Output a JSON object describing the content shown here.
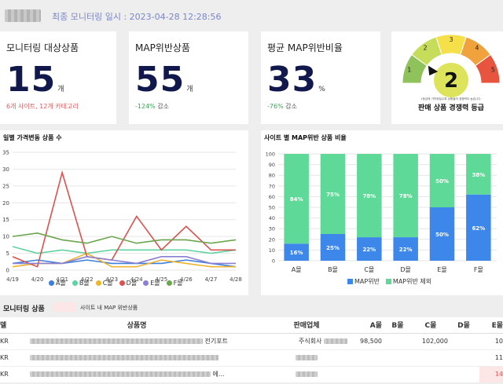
{
  "header": {
    "monitor_time": "최종 모니터링 일시 : 2023-04-28 12:28:56"
  },
  "kpi": [
    {
      "title": "모니터링 대상상품",
      "value": "15",
      "unit": "개",
      "sub_a": "6개 사이트, 12개 카테고리",
      "sub_b": ""
    },
    {
      "title": "MAP위반상품",
      "value": "55",
      "unit": "개",
      "sub_a": "-124%",
      "sub_b": "감소"
    },
    {
      "title": "평균 MAP위반비율",
      "value": "33",
      "unit": "%",
      "sub_a": "-76%",
      "sub_b": "감소"
    }
  ],
  "gauge": {
    "segments": [
      "1",
      "2",
      "3",
      "4",
      "5"
    ],
    "value": "2",
    "note": "1등급에 가까워질수록 상품들의 경쟁력이 높습니다.",
    "label": "판매 상품 경쟁력 등급",
    "colors": [
      "#8fc25a",
      "#c5dd5a",
      "#f6e04a",
      "#f0a33c",
      "#e8553e"
    ]
  },
  "line_panel": {
    "title": "일별 가격변동 상품 수"
  },
  "bar_panel": {
    "title": "사이트 별 MAP위반 상품 비율"
  },
  "chart_data": [
    {
      "type": "line",
      "title": "일별 가격변동 상품 수",
      "x": [
        "4/19",
        "4/20",
        "4/21",
        "4/22",
        "4/23",
        "4/24",
        "4/25",
        "4/26",
        "4/27",
        "4/28"
      ],
      "ylim": [
        0,
        35
      ],
      "yticks": [
        0,
        5,
        10,
        15,
        20,
        25,
        30,
        35
      ],
      "grid": true,
      "legend": "bottom",
      "series": [
        {
          "name": "A몰",
          "color": "#3d7fd9",
          "values": [
            2,
            3,
            2,
            3,
            2,
            2,
            2,
            3,
            2,
            1
          ]
        },
        {
          "name": "B몰",
          "color": "#5fd4a0",
          "values": [
            7,
            5,
            6,
            5,
            6,
            6,
            6,
            6,
            5,
            6
          ]
        },
        {
          "name": "C몰",
          "color": "#f0b32c",
          "values": [
            1,
            2,
            2,
            5,
            1,
            1,
            3,
            2,
            1,
            1
          ]
        },
        {
          "name": "D몰",
          "color": "#d9534f",
          "values": [
            4,
            1,
            29,
            4,
            3,
            16,
            6,
            13,
            6,
            6
          ]
        },
        {
          "name": "E몰",
          "color": "#8a7fd0",
          "values": [
            2,
            2,
            2,
            4,
            3,
            2,
            4,
            4,
            2,
            2
          ]
        },
        {
          "name": "F몰",
          "color": "#6ba54e",
          "values": [
            10,
            11,
            9,
            8,
            10,
            8,
            9,
            9,
            8,
            9
          ]
        }
      ]
    },
    {
      "type": "bar",
      "stacked": true,
      "title": "사이트 별 MAP위반 상품 비율",
      "categories": [
        "A몰",
        "B몰",
        "C몰",
        "D몰",
        "E몰",
        "F몰"
      ],
      "ylim": [
        0,
        100
      ],
      "yticks": [
        0,
        10,
        20,
        30,
        40,
        50,
        60,
        70,
        80,
        90,
        100
      ],
      "legend": "bottom",
      "series": [
        {
          "name": "MAP위반",
          "color": "#3d87ea",
          "values": [
            16,
            25,
            22,
            22,
            50,
            62
          ],
          "labels": [
            "16%",
            "25%",
            "22%",
            "22%",
            "50%",
            "62%"
          ]
        },
        {
          "name": "MAP위반 제외",
          "color": "#5fd998",
          "values": [
            84,
            75,
            78,
            78,
            50,
            38
          ],
          "labels": [
            "84%",
            "75%",
            "78%",
            "78%",
            "50%",
            "38%"
          ]
        }
      ]
    }
  ],
  "list_section": {
    "title": "모니터링 상품",
    "legend_label": "사이트 내 MAP 위반상품"
  },
  "table": {
    "headers": [
      "델",
      "상품명",
      "판매업체",
      "A몰",
      "B몰",
      "C몰",
      "D몰",
      "E몰"
    ],
    "rows": [
      {
        "model": "KR",
        "name_tail": "전기포트",
        "seller": "주식회사",
        "a": "98,500",
        "b": "",
        "c": "102,000",
        "d": "",
        "e": "10"
      },
      {
        "model": "KR",
        "name_tail": "",
        "seller": "",
        "a": "",
        "b": "",
        "c": "",
        "d": "",
        "e": "11"
      },
      {
        "model": "KR",
        "name_tail": "에...",
        "seller": "",
        "a": "",
        "b": "",
        "c": "",
        "d": "",
        "e": "14"
      }
    ]
  }
}
